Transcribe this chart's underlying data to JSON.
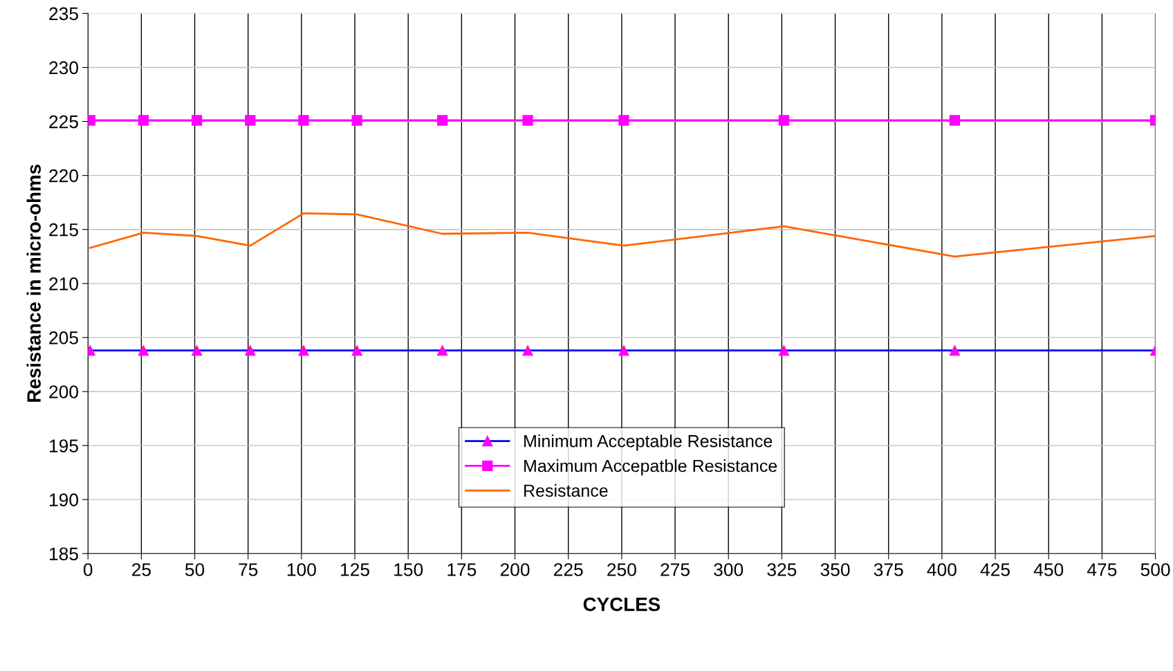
{
  "chart_data": {
    "type": "line",
    "xlabel": "CYCLES",
    "ylabel": "Resistance in micro-ohms",
    "x": [
      1,
      26,
      51,
      76,
      101,
      126,
      166,
      206,
      251,
      326,
      406,
      500
    ],
    "series": [
      {
        "name": "Minimum Acceptable Resistance",
        "color": "#0000ff",
        "marker": "triangle",
        "values": [
          203.8,
          203.8,
          203.8,
          203.8,
          203.8,
          203.8,
          203.8,
          203.8,
          203.8,
          203.8,
          203.8,
          203.8
        ]
      },
      {
        "name": "Maximum Accepatble Resistance",
        "color": "#ff00ff",
        "marker": "square",
        "values": [
          225.1,
          225.1,
          225.1,
          225.1,
          225.1,
          225.1,
          225.1,
          225.1,
          225.1,
          225.1,
          225.1,
          225.1
        ]
      },
      {
        "name": "Resistance",
        "color": "#ff6600",
        "marker": "none",
        "values": [
          213.3,
          214.7,
          214.4,
          213.5,
          216.5,
          216.4,
          214.6,
          214.7,
          213.5,
          215.3,
          212.5,
          214.4
        ]
      }
    ],
    "xlim": [
      0,
      500
    ],
    "xticks": [
      0,
      25,
      50,
      75,
      100,
      125,
      150,
      175,
      200,
      225,
      250,
      275,
      300,
      325,
      350,
      375,
      400,
      425,
      450,
      475,
      500
    ],
    "ylim": [
      185,
      235
    ],
    "yticks": [
      185,
      190,
      195,
      200,
      205,
      210,
      215,
      220,
      225,
      230,
      235
    ],
    "grid": true,
    "legend": "bottom"
  }
}
